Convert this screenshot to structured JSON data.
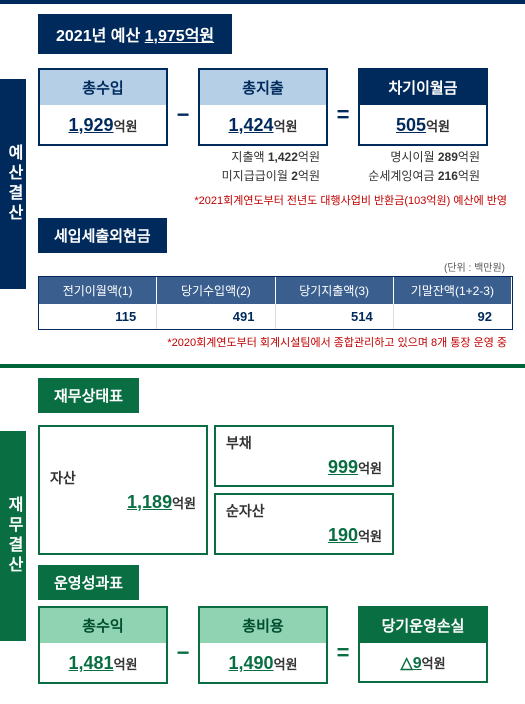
{
  "colors": {
    "navy": "#002a5c",
    "navy_bar": "#002a5c",
    "light_blue": "#b5cfe7",
    "green": "#0a6e43",
    "light_green": "#8fd3b3",
    "note_red": "#c00000",
    "white": "#ffffff"
  },
  "section1": {
    "sidebar_label": "예산결산",
    "title_prefix": "2021년 예산 ",
    "title_amount": "1,975억원",
    "boxes": {
      "revenue": {
        "label": "총수입",
        "amount": "1,929",
        "unit": "억원"
      },
      "expense": {
        "label": "총지출",
        "amount": "1,424",
        "unit": "억원",
        "details": [
          {
            "label": "지출액",
            "amount": "1,422",
            "unit": "억원"
          },
          {
            "label": "미지급급이월",
            "amount": "2",
            "unit": "억원"
          }
        ]
      },
      "carry": {
        "label": "차기이월금",
        "amount": "505",
        "unit": "억원",
        "details": [
          {
            "label": "명시이월",
            "amount": "289",
            "unit": "억원"
          },
          {
            "label": "순세계잉여금",
            "amount": "216",
            "unit": "억원"
          }
        ]
      },
      "op_minus": "−",
      "op_eq": "="
    },
    "note": "*2021회계연도부터 전년도 대행사업비 반환금(103억원) 예산에 반영",
    "cash": {
      "title": "세입세출외현금",
      "unit_label": "(단위 : 백만원)",
      "headers": [
        "전기이월액(1)",
        "당기수입액(2)",
        "당기지출액(3)",
        "기말잔액(1+2-3)"
      ],
      "values": [
        "115",
        "491",
        "514",
        "92"
      ],
      "note": "*2020회계연도부터 회계시설팀에서 종합관리하고 있으며 8개 통장 운영 중"
    }
  },
  "section2": {
    "sidebar_label": "재무결산",
    "fs": {
      "title": "재무상태표",
      "asset": {
        "label": "자산",
        "amount": "1,189",
        "unit": "억원"
      },
      "liability": {
        "label": "부채",
        "amount": "999",
        "unit": "억원"
      },
      "netasset": {
        "label": "순자산",
        "amount": "190",
        "unit": "억원"
      }
    },
    "ops": {
      "title": "운영성과표",
      "revenue": {
        "label": "총수익",
        "amount": "1,481",
        "unit": "억원"
      },
      "expense": {
        "label": "총비용",
        "amount": "1,490",
        "unit": "억원"
      },
      "loss": {
        "label": "당기운영손실",
        "amount": "△9",
        "unit": "억원"
      },
      "op_minus": "−",
      "op_eq": "="
    }
  }
}
